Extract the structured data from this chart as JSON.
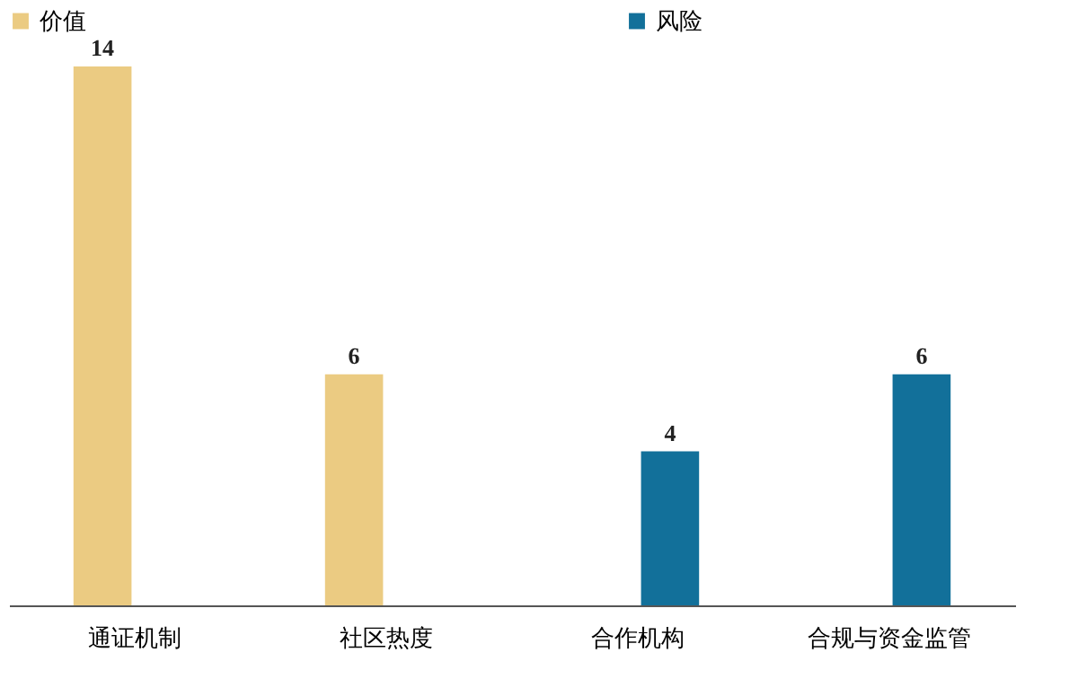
{
  "chart_data": {
    "type": "bar",
    "categories": [
      "通证机制",
      "社区热度",
      "合作机构",
      "合规与资金监管"
    ],
    "series": [
      {
        "name": "价值",
        "color": "#ebcb82",
        "values": [
          14,
          6,
          null,
          null
        ]
      },
      {
        "name": "风险",
        "color": "#12709a",
        "values": [
          null,
          null,
          4,
          6
        ]
      }
    ],
    "data_labels": true,
    "legend": "top",
    "grid": false
  }
}
